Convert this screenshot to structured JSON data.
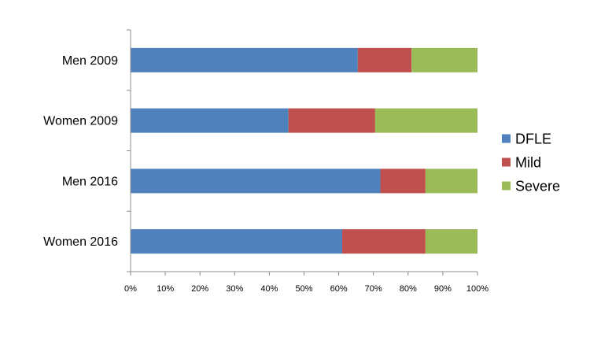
{
  "chart_data": {
    "type": "bar",
    "orientation": "horizontal",
    "stacked": true,
    "title": "",
    "xlabel": "",
    "ylabel": "",
    "xlim": [
      0,
      100
    ],
    "x_ticks": [
      "0%",
      "10%",
      "20%",
      "30%",
      "40%",
      "50%",
      "60%",
      "70%",
      "80%",
      "90%",
      "100%"
    ],
    "categories": [
      "Men 2009",
      "Women 2009",
      "Men 2016",
      "Women 2016"
    ],
    "series": [
      {
        "name": "DFLE",
        "color": "#4F81BD",
        "values": [
          65.5,
          45.5,
          72,
          61
        ]
      },
      {
        "name": "Mild",
        "color": "#C0504D",
        "values": [
          15.5,
          25,
          13,
          24
        ]
      },
      {
        "name": "Severe",
        "color": "#9BBB59",
        "values": [
          19,
          29.5,
          15,
          15
        ]
      }
    ],
    "legend_position": "right",
    "grid": false
  }
}
